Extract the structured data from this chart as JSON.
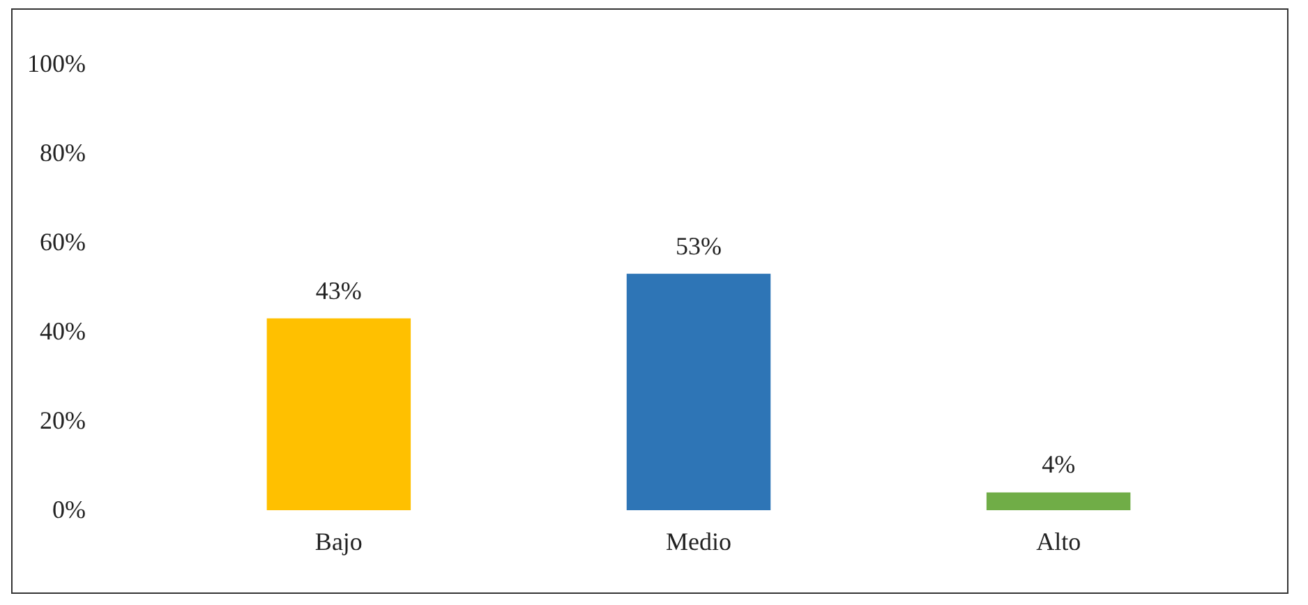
{
  "chart_data": {
    "type": "bar",
    "categories": [
      "Bajo",
      "Medio",
      "Alto"
    ],
    "values": [
      43,
      53,
      4
    ],
    "colors": [
      "#ffc000",
      "#2e75b6",
      "#70ad47"
    ],
    "value_labels": [
      "43%",
      "53%",
      "4%"
    ],
    "ylim": [
      0,
      100
    ],
    "yticks": [
      {
        "value": 0,
        "label": "0%"
      },
      {
        "value": 20,
        "label": "20%"
      },
      {
        "value": 40,
        "label": "40%"
      },
      {
        "value": 60,
        "label": "60%"
      },
      {
        "value": 80,
        "label": "80%"
      },
      {
        "value": 100,
        "label": "100%"
      }
    ],
    "grid": false,
    "legend": false
  }
}
